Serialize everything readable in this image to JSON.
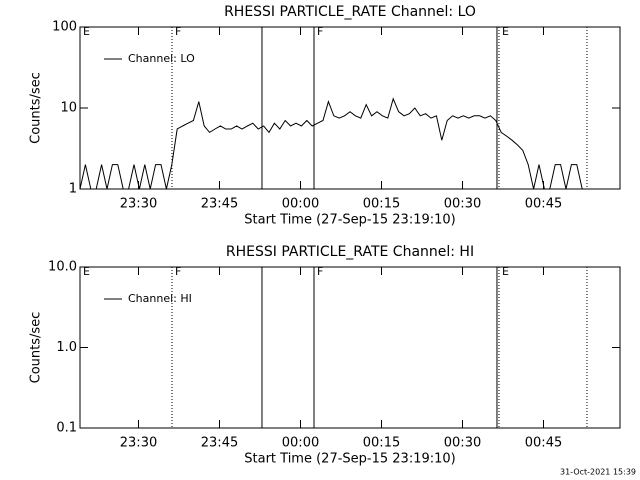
{
  "chart_data": [
    {
      "type": "line",
      "title": "RHESSI PARTICLE_RATE Channel: LO",
      "xlabel": "Start Time (27-Sep-15 23:19:10)",
      "ylabel": "Counts/sec",
      "x": [
        0,
        60,
        120,
        180,
        240,
        300,
        360,
        420,
        480,
        540,
        600,
        660,
        720,
        780,
        840,
        900,
        960,
        1020,
        1080,
        1140,
        1200,
        1260,
        1320,
        1380,
        1440,
        1500,
        1560,
        1620,
        1680,
        1740,
        1800,
        1860,
        1920,
        1980,
        2040,
        2100,
        2160,
        2220,
        2280,
        2340,
        2400,
        2460,
        2520,
        2580,
        2640,
        2700,
        2760,
        2820,
        2880,
        2940,
        3000,
        3060,
        3120,
        3180,
        3240,
        3300,
        3360,
        3420,
        3480,
        3540,
        3600,
        3660,
        3720,
        3780,
        3840,
        3900,
        3960,
        4020,
        4080,
        4140,
        4200,
        4260,
        4320,
        4380,
        4440,
        4500,
        4560,
        4620,
        4680,
        4740,
        4800,
        4860,
        4920,
        4980,
        5040,
        5100,
        5160,
        5220,
        5280,
        5340,
        5400,
        5460,
        5520,
        5580
      ],
      "series": [
        {
          "name": "Channel: LO",
          "color": "#000000",
          "values": [
            1,
            2,
            1,
            1,
            2,
            1,
            2,
            2,
            1,
            1,
            2,
            1,
            2,
            1,
            2,
            2,
            1,
            2,
            5.5,
            6,
            6.5,
            7,
            12,
            6,
            5,
            5.5,
            6,
            5.5,
            5.5,
            6,
            5.5,
            6,
            6.5,
            5.5,
            6,
            5,
            6.5,
            5.5,
            7,
            6,
            6.5,
            6,
            7,
            6,
            6.5,
            7,
            12,
            8,
            7.5,
            8,
            9,
            8,
            7.5,
            11,
            8,
            9,
            8,
            7.5,
            13,
            9,
            8,
            8.5,
            10,
            8,
            8.5,
            7.5,
            8,
            4,
            7,
            8,
            7.5,
            8,
            7.5,
            8,
            8,
            7.5,
            8,
            7,
            5,
            4.5,
            4,
            3.5,
            3,
            2,
            1,
            2,
            1,
            1,
            2,
            2,
            1,
            2,
            2,
            1
          ]
        }
      ],
      "xlim": [
        0,
        6000
      ],
      "xticks": [
        {
          "value": 650,
          "label": "23:30"
        },
        {
          "value": 1550,
          "label": "23:45"
        },
        {
          "value": 2450,
          "label": "00:00"
        },
        {
          "value": 3350,
          "label": "00:15"
        },
        {
          "value": 4250,
          "label": "00:30"
        },
        {
          "value": 5150,
          "label": "00:45"
        }
      ],
      "ylim": [
        1,
        100
      ],
      "yticks": [
        1,
        10,
        100
      ],
      "log_y": true,
      "legend": "upper left",
      "vlines": [
        {
          "x": 1022,
          "style": "dotted"
        },
        {
          "x": 2022,
          "style": "solid"
        },
        {
          "x": 2600,
          "style": "solid"
        },
        {
          "x": 4633,
          "style": "solid"
        },
        {
          "x": 4655,
          "style": "dotted"
        },
        {
          "x": 5633,
          "style": "dotted"
        }
      ],
      "annotations": [
        {
          "text": "E",
          "x": 0
        },
        {
          "text": "F",
          "x": 1022
        },
        {
          "text": "F",
          "x": 2600
        },
        {
          "text": "E",
          "x": 4655
        }
      ]
    },
    {
      "type": "line",
      "title": "RHESSI PARTICLE_RATE Channel: HI",
      "xlabel": "Start Time (27-Sep-15 23:19:10)",
      "ylabel": "Counts/sec",
      "x": [],
      "series": [
        {
          "name": "Channel: HI",
          "color": "#000000",
          "values": []
        }
      ],
      "xlim": [
        0,
        6000
      ],
      "xticks": [
        {
          "value": 650,
          "label": "23:30"
        },
        {
          "value": 1550,
          "label": "23:45"
        },
        {
          "value": 2450,
          "label": "00:00"
        },
        {
          "value": 3350,
          "label": "00:15"
        },
        {
          "value": 4250,
          "label": "00:30"
        },
        {
          "value": 5150,
          "label": "00:45"
        }
      ],
      "ylim": [
        0.1,
        10
      ],
      "yticks": [
        0.1,
        {
          "value": 1,
          "label": "1.0"
        },
        {
          "value": 10,
          "label": "10.0"
        }
      ],
      "log_y": true,
      "legend": "upper left",
      "vlines": [
        {
          "x": 1022,
          "style": "dotted"
        },
        {
          "x": 2022,
          "style": "solid"
        },
        {
          "x": 2600,
          "style": "solid"
        },
        {
          "x": 4633,
          "style": "solid"
        },
        {
          "x": 4655,
          "style": "dotted"
        },
        {
          "x": 5633,
          "style": "dotted"
        }
      ],
      "annotations": [
        {
          "text": "E",
          "x": 0
        },
        {
          "text": "F",
          "x": 1022
        },
        {
          "text": "F",
          "x": 2600
        },
        {
          "text": "E",
          "x": 4655
        }
      ]
    }
  ],
  "footer": "31-Oct-2021 15:39"
}
